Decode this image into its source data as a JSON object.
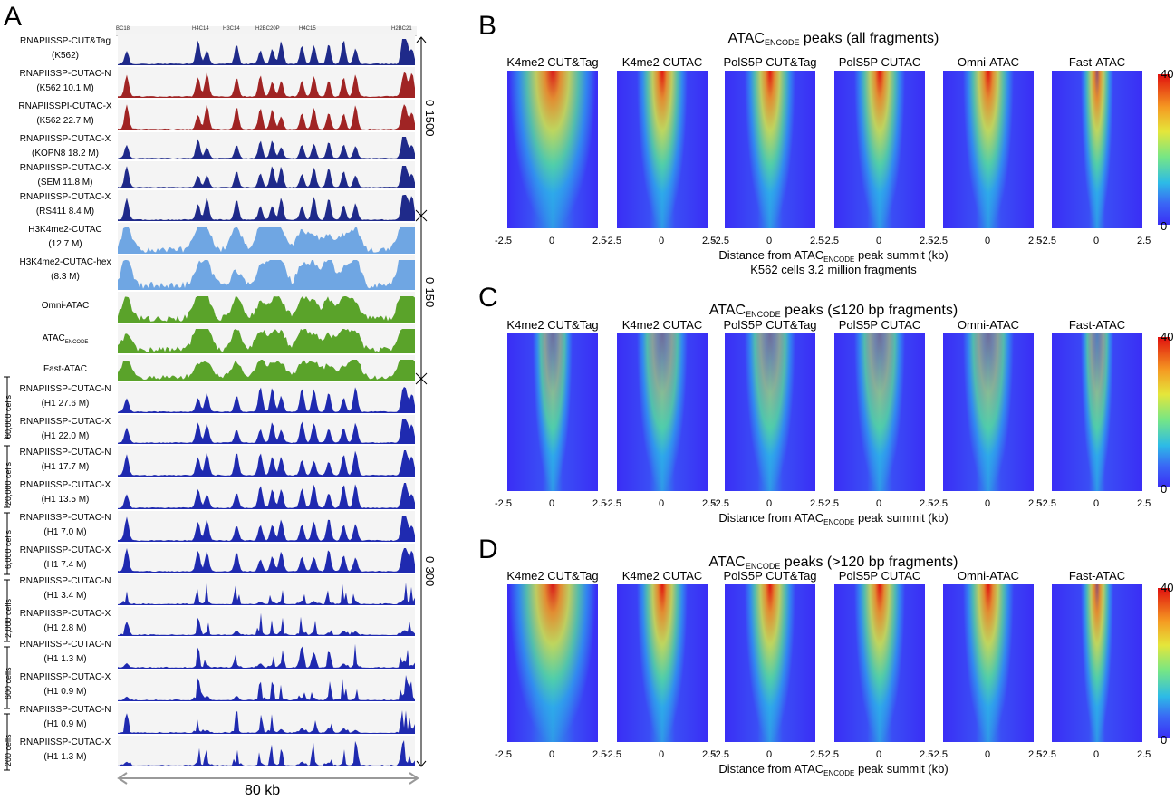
{
  "panelA": {
    "letter": "A",
    "genes": [
      "BC18",
      "H4C14",
      "H3C14",
      "H2BC20P",
      "H4C15",
      "H2BC21"
    ],
    "tracks": [
      {
        "l1": "RNAPIISSP-CUT&Tag",
        "l2": "(K562)",
        "color": "#1f2a8a"
      },
      {
        "l1": "RNAPIISSP-CUTAC-N",
        "l2": "(K562 10.1 M)",
        "color": "#a02424"
      },
      {
        "l1": "RNAPIISSPI-CUTAC-X",
        "l2": "(K562 22.7 M)",
        "color": "#a02424"
      },
      {
        "l1": "RNAPIISSP-CUTAC-X",
        "l2": "(KOPN8 18.2 M)",
        "color": "#1f2a8a"
      },
      {
        "l1": "RNAPIISSP-CUTAC-X",
        "l2": "(SEM 11.8 M)",
        "color": "#1f2a8a"
      },
      {
        "l1": "RNAPIISSP-CUTAC-X",
        "l2": "(RS411 8.4 M)",
        "color": "#1f2a8a"
      },
      {
        "l1": "H3K4me2-CUTAC",
        "l2": "(12.7 M)",
        "color": "#6fa6e3"
      },
      {
        "l1": "H3K4me2-CUTAC-hex",
        "l2": "(8.3 M)",
        "color": "#6fa6e3"
      },
      {
        "l1": "Omni-ATAC",
        "l2": "",
        "color": "#5aa32a"
      },
      {
        "l1": "ATAC",
        "l1sub": "ENCODE",
        "l2": "",
        "color": "#5aa32a"
      },
      {
        "l1": "Fast-ATAC",
        "l2": "",
        "color": "#5aa32a"
      },
      {
        "l1": "RNAPIISSP-CUTAC-N",
        "l2": "(H1 27.6 M)",
        "color": "#1f2ab0"
      },
      {
        "l1": "RNAPIISSP-CUTAC-X",
        "l2": "(H1 22.0 M)",
        "color": "#1f2ab0"
      },
      {
        "l1": "RNAPIISSP-CUTAC-N",
        "l2": "(H1 17.7 M)",
        "color": "#1f2ab0"
      },
      {
        "l1": "RNAPIISSP-CUTAC-X",
        "l2": "(H1 13.5 M)",
        "color": "#1f2ab0"
      },
      {
        "l1": "RNAPIISSP-CUTAC-N",
        "l2": "(H1 7.0 M)",
        "color": "#1f2ab0"
      },
      {
        "l1": "RNAPIISSP-CUTAC-X",
        "l2": "(H1 7.4 M)",
        "color": "#1f2ab0"
      },
      {
        "l1": "RNAPIISSP-CUTAC-N",
        "l2": "(H1 3.4 M)",
        "color": "#1f2ab0"
      },
      {
        "l1": "RNAPIISSP-CUTAC-X",
        "l2": "(H1 2.8 M)",
        "color": "#1f2ab0"
      },
      {
        "l1": "RNAPIISSP-CUTAC-N",
        "l2": "(H1 1.3 M)",
        "color": "#1f2ab0"
      },
      {
        "l1": "RNAPIISSP-CUTAC-X",
        "l2": "(H1 0.9 M)",
        "color": "#1f2ab0"
      },
      {
        "l1": "RNAPIISSP-CUTAC-N",
        "l2": "(H1 0.9 M)",
        "color": "#1f2ab0"
      },
      {
        "l1": "RNAPIISSP-CUTAC-X",
        "l2": "(H1 1.3 M)",
        "color": "#1f2ab0"
      }
    ],
    "scale_top": "0-1500",
    "scale_mid": "0-150",
    "scale_bot": "0-300",
    "cells": [
      "60,000 cells",
      "20,000 cells",
      "6,000 cells",
      "2,000 cells",
      "600 cells",
      "200 cells"
    ],
    "span_label": "80 kb"
  },
  "heatmaps": {
    "columns": [
      "K4me2 CUT&Tag",
      "K4me2 CUTAC",
      "PolS5P CUT&Tag",
      "PolS5P CUTAC",
      "Omni-ATAC",
      "Fast-ATAC"
    ],
    "ticks": [
      "-2.5",
      "0",
      "2.5"
    ],
    "xlabel_pre": "Distance from ATAC",
    "xlabel_sub": "ENCODE",
    "xlabel_post": " peak summit (kb)",
    "title_pre": "ATAC",
    "title_sub": "ENCODE",
    "colorbar": {
      "max": "40",
      "min": "0"
    },
    "panels": [
      {
        "letter": "B",
        "title_post": " peaks (all fragments)",
        "note": "K562 cells 3.2 million fragments"
      },
      {
        "letter": "C",
        "title_post": " peaks (≤120 bp fragments)",
        "note": ""
      },
      {
        "letter": "D",
        "title_post": " peaks (>120 bp fragments)",
        "note": ""
      }
    ]
  },
  "colors": {
    "red": "#e0100e",
    "blue": "#3a2ef5"
  }
}
